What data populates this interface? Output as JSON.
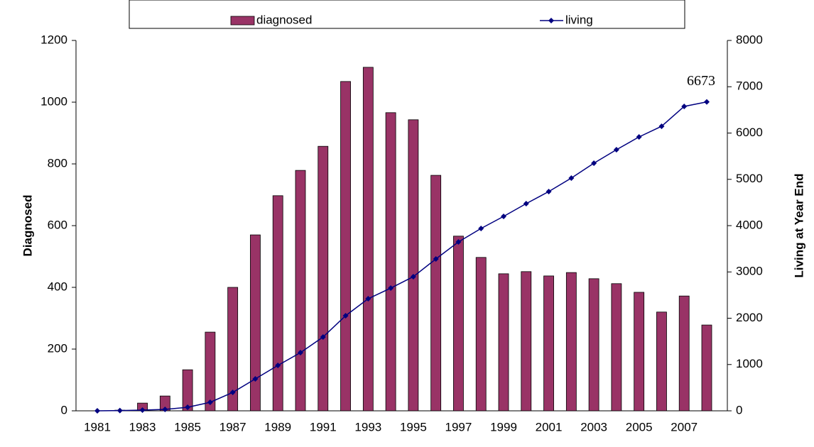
{
  "chart_data": {
    "type": "bar",
    "categories": [
      "1981",
      null,
      "1983",
      null,
      "1985",
      null,
      "1987",
      null,
      "1989",
      null,
      "1991",
      null,
      "1993",
      null,
      "1995",
      null,
      "1997",
      null,
      "1999",
      null,
      "2001",
      null,
      "2003",
      null,
      "2005",
      null,
      "2007",
      null
    ],
    "series": [
      {
        "name": "diagnosed",
        "type": "bar",
        "color": "#993366",
        "axis": "y",
        "values": [
          0,
          2,
          25,
          48,
          133,
          255,
          400,
          570,
          697,
          779,
          857,
          1067,
          1113,
          966,
          943,
          763,
          566,
          497,
          444,
          451,
          437,
          448,
          428,
          412,
          384,
          320,
          372,
          278
        ]
      },
      {
        "name": "living",
        "type": "line",
        "color": "#000080",
        "axis": "y2",
        "values": [
          0,
          5,
          15,
          30,
          77,
          184,
          398,
          690,
          981,
          1257,
          1594,
          2054,
          2421,
          2651,
          2897,
          3280,
          3648,
          3939,
          4199,
          4475,
          4736,
          5027,
          5349,
          5640,
          5916,
          6146,
          6575,
          6673
        ]
      }
    ],
    "ylabel": "Diagnosed",
    "y2label": "Living at Year End",
    "ylim": [
      0,
      1200
    ],
    "yticks": [
      0,
      200,
      400,
      600,
      800,
      1000,
      1200
    ],
    "y2lim": [
      0,
      8000
    ],
    "y2ticks": [
      0,
      1000,
      2000,
      3000,
      4000,
      5000,
      6000,
      7000,
      8000
    ],
    "grid": false
  }
}
